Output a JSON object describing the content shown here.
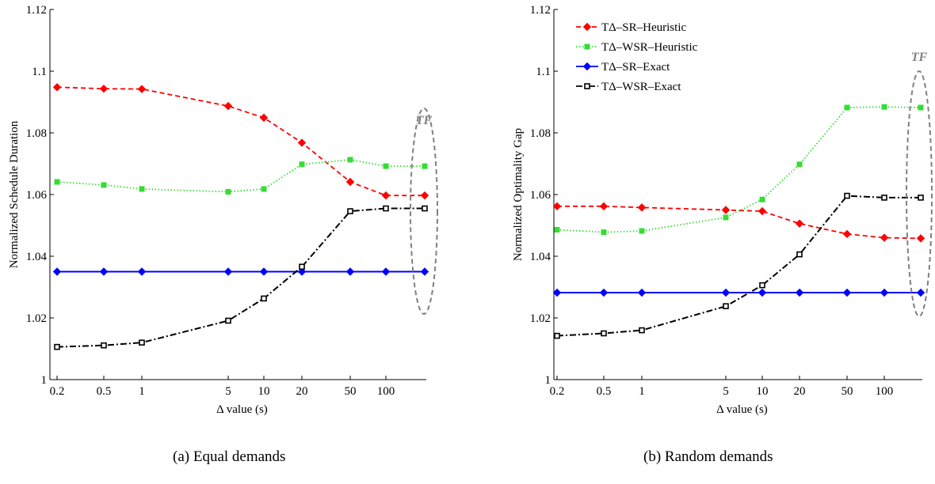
{
  "chart_data": [
    {
      "type": "line",
      "caption": "(a) Equal demands",
      "xlabel": "Δ value (s)",
      "ylabel": "Normalized Schedule Duration",
      "x_scale": "log",
      "x_tick_labels": [
        "0.2",
        "0.5",
        "1",
        "5",
        "10",
        "20",
        "50",
        "100"
      ],
      "x_tick_values": [
        0.2,
        0.5,
        1,
        5,
        10,
        20,
        50,
        100
      ],
      "ylim": [
        1,
        1.12
      ],
      "y_ticks": [
        1,
        1.02,
        1.04,
        1.06,
        1.08,
        1.1,
        1.12
      ],
      "y_tick_labels": [
        "1",
        "1.02",
        "1.04",
        "1.06",
        "1.08",
        "1.1",
        "1.12"
      ],
      "x_category_label": "TF",
      "series": [
        {
          "name": "TΔ–SR–Heuristic",
          "color": "#ff0000",
          "dash": "6,4",
          "marker": "diamond",
          "values": [
            1.0948,
            1.0943,
            1.0942,
            1.0887,
            1.0849,
            1.0768,
            1.0641,
            1.0597,
            1.0597
          ]
        },
        {
          "name": "TΔ–WSR–Heuristic",
          "color": "#33dd33",
          "dash": "1.5,2.5",
          "marker": "square",
          "values": [
            1.0641,
            1.0631,
            1.0618,
            1.0609,
            1.0618,
            1.0698,
            1.0713,
            1.0692,
            1.0692
          ]
        },
        {
          "name": "TΔ–SR–Exact",
          "color": "#0000ff",
          "dash": "",
          "marker": "diamond",
          "values": [
            1.035,
            1.035,
            1.035,
            1.035,
            1.035,
            1.035,
            1.035,
            1.035,
            1.035
          ]
        },
        {
          "name": "TΔ–WSR–Exact",
          "color": "#000000",
          "dash": "8,3,2,3",
          "marker": "square-open",
          "values": [
            1.0106,
            1.0111,
            1.012,
            1.0191,
            1.0263,
            1.0366,
            1.0546,
            1.0555,
            1.0555
          ]
        }
      ]
    },
    {
      "type": "line",
      "caption": "(b) Random demands",
      "xlabel": "Δ value (s)",
      "ylabel": "Normalized Optimality Gap",
      "x_scale": "log",
      "x_tick_labels": [
        "0.2",
        "0.5",
        "1",
        "5",
        "10",
        "20",
        "50",
        "100"
      ],
      "x_tick_values": [
        0.2,
        0.5,
        1,
        5,
        10,
        20,
        50,
        100
      ],
      "ylim": [
        1,
        1.12
      ],
      "y_ticks": [
        1,
        1.02,
        1.04,
        1.06,
        1.08,
        1.1,
        1.12
      ],
      "y_tick_labels": [
        "1",
        "1.02",
        "1.04",
        "1.06",
        "1.08",
        "1.1",
        "1.12"
      ],
      "x_category_label": "TF",
      "legend": "top-left",
      "series": [
        {
          "name": "TΔ–SR–Heuristic",
          "color": "#ff0000",
          "dash": "6,4",
          "marker": "diamond",
          "values": [
            1.0562,
            1.0562,
            1.0558,
            1.055,
            1.0546,
            1.0506,
            1.0472,
            1.046,
            1.0458
          ]
        },
        {
          "name": "TΔ–WSR–Heuristic",
          "color": "#33dd33",
          "dash": "1.5,2.5",
          "marker": "square",
          "values": [
            1.0486,
            1.0478,
            1.0482,
            1.0526,
            1.0584,
            1.0698,
            1.0882,
            1.0884,
            1.0882
          ]
        },
        {
          "name": "TΔ–SR–Exact",
          "color": "#0000ff",
          "dash": "",
          "marker": "diamond",
          "values": [
            1.0282,
            1.0282,
            1.0282,
            1.0282,
            1.0282,
            1.0282,
            1.0282,
            1.0282,
            1.0282
          ]
        },
        {
          "name": "TΔ–WSR–Exact",
          "color": "#000000",
          "dash": "8,3,2,3",
          "marker": "square-open",
          "values": [
            1.0142,
            1.015,
            1.016,
            1.0238,
            1.0306,
            1.0406,
            1.0596,
            1.059,
            1.059
          ]
        }
      ]
    }
  ]
}
